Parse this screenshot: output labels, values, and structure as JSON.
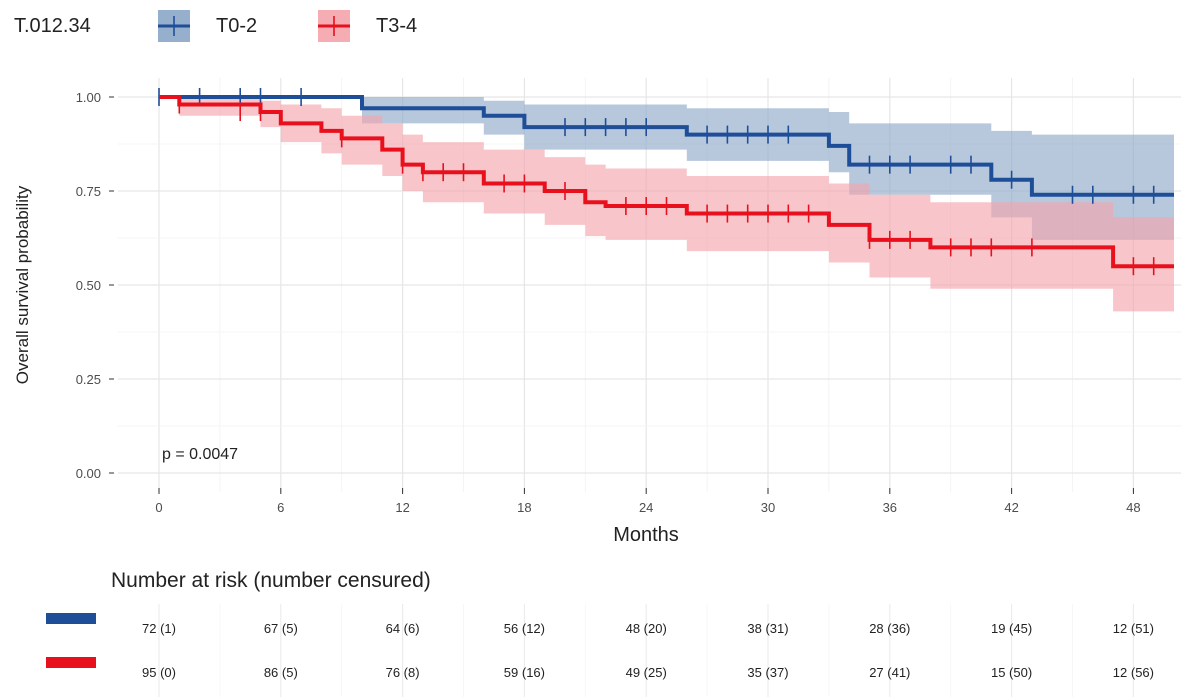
{
  "chart_data": {
    "type": "line",
    "subtype": "kaplan-meier",
    "legend_title": "T.012.34",
    "legend_position": "top-left",
    "ylabel": "Overall survival probability",
    "xlabel": "Months",
    "xlim": [
      0,
      50
    ],
    "ylim": [
      0,
      1
    ],
    "xticks": [
      0,
      6,
      12,
      18,
      24,
      30,
      36,
      42,
      48
    ],
    "yticks": [
      0,
      0.25,
      0.5,
      0.75,
      1.0
    ],
    "ytick_labels": [
      "0.00",
      "0.25",
      "0.50",
      "0.75",
      "1.00"
    ],
    "grid": true,
    "annotation": "p = 0.0047",
    "series": [
      {
        "name": "T0-2",
        "color": "#1f4e99",
        "fill": "#8aa6c8",
        "steps": [
          [
            0,
            1.0
          ],
          [
            10,
            0.97
          ],
          [
            16,
            0.95
          ],
          [
            18,
            0.92
          ],
          [
            26,
            0.9
          ],
          [
            33,
            0.87
          ],
          [
            34,
            0.82
          ],
          [
            41,
            0.78
          ],
          [
            43,
            0.74
          ],
          [
            50,
            0.74
          ]
        ],
        "ci_upper": [
          [
            0,
            1.0
          ],
          [
            10,
            1.0
          ],
          [
            16,
            0.99
          ],
          [
            18,
            0.98
          ],
          [
            26,
            0.97
          ],
          [
            33,
            0.96
          ],
          [
            34,
            0.93
          ],
          [
            41,
            0.91
          ],
          [
            43,
            0.9
          ],
          [
            50,
            0.9
          ]
        ],
        "ci_lower": [
          [
            0,
            1.0
          ],
          [
            10,
            0.93
          ],
          [
            16,
            0.9
          ],
          [
            18,
            0.86
          ],
          [
            26,
            0.83
          ],
          [
            33,
            0.8
          ],
          [
            34,
            0.74
          ],
          [
            41,
            0.68
          ],
          [
            43,
            0.62
          ],
          [
            50,
            0.62
          ]
        ],
        "censors": [
          [
            0,
            1.0
          ],
          [
            2,
            1.0
          ],
          [
            4,
            1.0
          ],
          [
            5,
            1.0
          ],
          [
            7,
            1.0
          ],
          [
            20,
            0.92
          ],
          [
            21,
            0.92
          ],
          [
            22,
            0.92
          ],
          [
            23,
            0.92
          ],
          [
            24,
            0.92
          ],
          [
            27,
            0.9
          ],
          [
            28,
            0.9
          ],
          [
            29,
            0.9
          ],
          [
            30,
            0.9
          ],
          [
            31,
            0.9
          ],
          [
            35,
            0.82
          ],
          [
            36,
            0.82
          ],
          [
            37,
            0.82
          ],
          [
            39,
            0.82
          ],
          [
            40,
            0.82
          ],
          [
            42,
            0.78
          ],
          [
            45,
            0.74
          ],
          [
            46,
            0.74
          ],
          [
            48,
            0.74
          ],
          [
            49,
            0.74
          ]
        ]
      },
      {
        "name": "T3-4",
        "color": "#e8101c",
        "fill": "#f4a3aa",
        "steps": [
          [
            0,
            1.0
          ],
          [
            1,
            0.98
          ],
          [
            5,
            0.96
          ],
          [
            6,
            0.93
          ],
          [
            8,
            0.91
          ],
          [
            9,
            0.89
          ],
          [
            11,
            0.86
          ],
          [
            12,
            0.82
          ],
          [
            13,
            0.8
          ],
          [
            16,
            0.77
          ],
          [
            19,
            0.75
          ],
          [
            21,
            0.72
          ],
          [
            22,
            0.71
          ],
          [
            26,
            0.69
          ],
          [
            33,
            0.66
          ],
          [
            35,
            0.62
          ],
          [
            38,
            0.6
          ],
          [
            47,
            0.55
          ],
          [
            50,
            0.55
          ]
        ],
        "ci_upper": [
          [
            0,
            1.0
          ],
          [
            1,
            1.0
          ],
          [
            5,
            0.99
          ],
          [
            6,
            0.98
          ],
          [
            8,
            0.97
          ],
          [
            9,
            0.95
          ],
          [
            11,
            0.93
          ],
          [
            12,
            0.9
          ],
          [
            13,
            0.88
          ],
          [
            16,
            0.86
          ],
          [
            19,
            0.84
          ],
          [
            21,
            0.82
          ],
          [
            22,
            0.81
          ],
          [
            26,
            0.79
          ],
          [
            33,
            0.77
          ],
          [
            35,
            0.74
          ],
          [
            38,
            0.72
          ],
          [
            47,
            0.68
          ],
          [
            50,
            0.68
          ]
        ],
        "ci_lower": [
          [
            0,
            1.0
          ],
          [
            1,
            0.95
          ],
          [
            5,
            0.92
          ],
          [
            6,
            0.88
          ],
          [
            8,
            0.85
          ],
          [
            9,
            0.82
          ],
          [
            11,
            0.79
          ],
          [
            12,
            0.75
          ],
          [
            13,
            0.72
          ],
          [
            16,
            0.69
          ],
          [
            19,
            0.66
          ],
          [
            21,
            0.63
          ],
          [
            22,
            0.62
          ],
          [
            26,
            0.59
          ],
          [
            33,
            0.56
          ],
          [
            35,
            0.52
          ],
          [
            38,
            0.49
          ],
          [
            47,
            0.43
          ],
          [
            50,
            0.43
          ]
        ],
        "censors": [
          [
            1,
            0.98
          ],
          [
            4,
            0.96
          ],
          [
            5,
            0.96
          ],
          [
            9,
            0.89
          ],
          [
            12,
            0.82
          ],
          [
            13,
            0.8
          ],
          [
            14,
            0.8
          ],
          [
            15,
            0.8
          ],
          [
            17,
            0.77
          ],
          [
            18,
            0.77
          ],
          [
            20,
            0.75
          ],
          [
            23,
            0.71
          ],
          [
            24,
            0.71
          ],
          [
            25,
            0.71
          ],
          [
            27,
            0.69
          ],
          [
            28,
            0.69
          ],
          [
            29,
            0.69
          ],
          [
            30,
            0.69
          ],
          [
            31,
            0.69
          ],
          [
            32,
            0.69
          ],
          [
            35,
            0.62
          ],
          [
            36,
            0.62
          ],
          [
            37,
            0.62
          ],
          [
            39,
            0.6
          ],
          [
            40,
            0.6
          ],
          [
            41,
            0.6
          ],
          [
            43,
            0.6
          ],
          [
            48,
            0.55
          ],
          [
            49,
            0.55
          ]
        ]
      }
    ],
    "risk_table": {
      "title": "Number at risk (number censured)",
      "times": [
        0,
        6,
        12,
        18,
        24,
        30,
        36,
        42,
        48
      ],
      "rows": [
        {
          "name": "T0-2",
          "color": "#1f4e99",
          "values": [
            "72 (1)",
            "67 (5)",
            "64 (6)",
            "56 (12)",
            "48 (20)",
            "38 (31)",
            "28 (36)",
            "19 (45)",
            "12 (51)"
          ]
        },
        {
          "name": "T3-4",
          "color": "#e8101c",
          "values": [
            "95 (0)",
            "86 (5)",
            "76 (8)",
            "59 (16)",
            "49 (25)",
            "35 (37)",
            "27 (41)",
            "15 (50)",
            "12 (56)"
          ]
        }
      ]
    }
  }
}
